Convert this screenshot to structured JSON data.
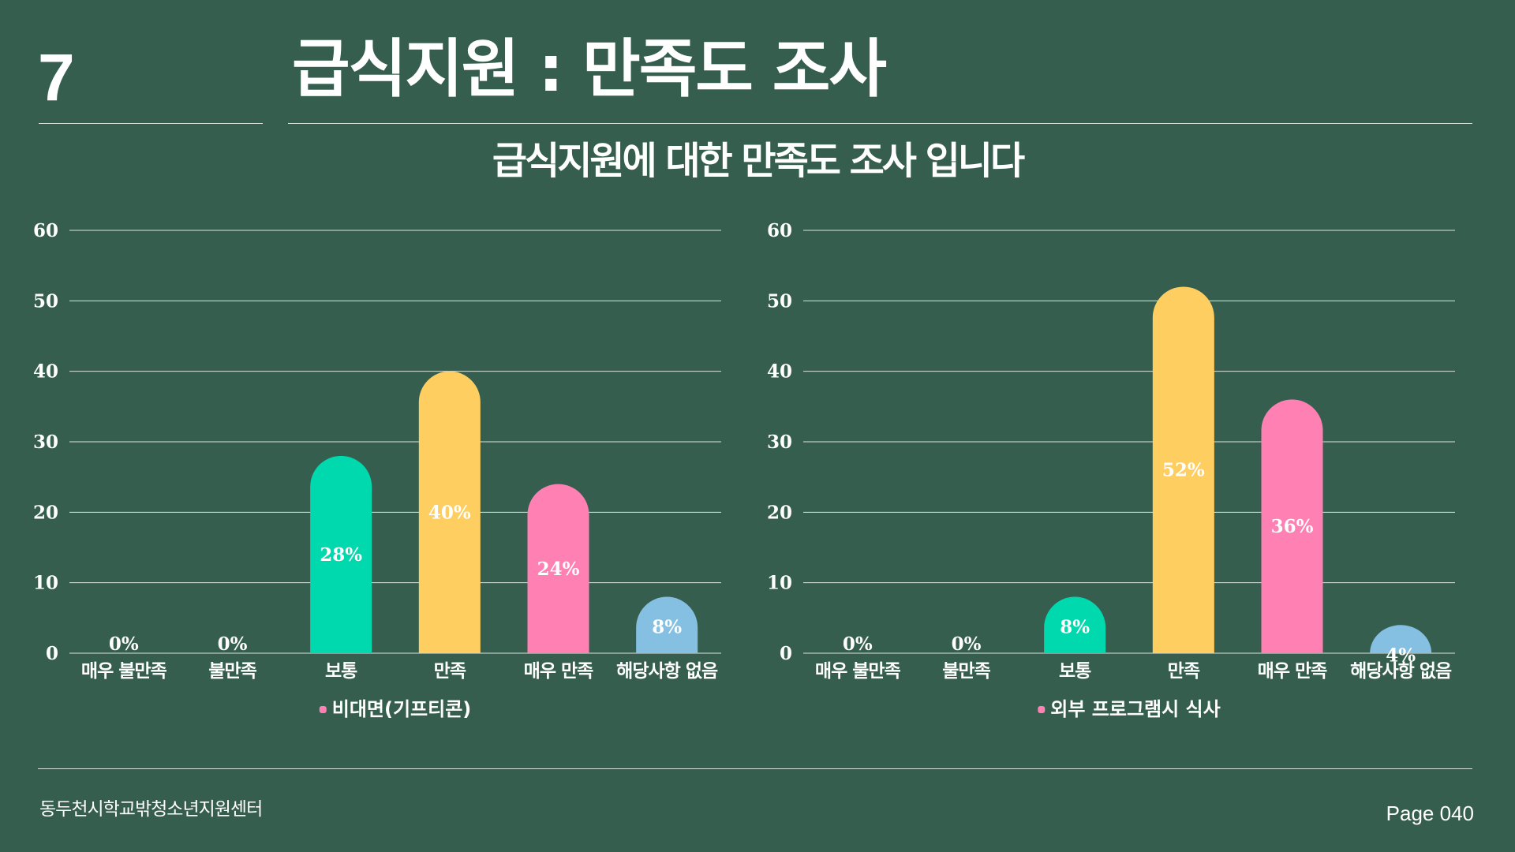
{
  "slide": {
    "number": "7",
    "title": "급식지원 : 만족도 조사",
    "subtitle": "급식지원에 대한 만족도 조사 입니다"
  },
  "footer": {
    "organization": "동두천시학교밖청소년지원센터",
    "page": "Page 040"
  },
  "chart_data": [
    {
      "type": "bar",
      "categories": [
        "매우 불만족",
        "불만족",
        "보통",
        "만족",
        "매우 만족",
        "해당사항 없음"
      ],
      "series": [
        {
          "name": "비대면(기프티콘)",
          "values": [
            0,
            0,
            28,
            40,
            24,
            8
          ]
        }
      ],
      "data_labels": [
        "0%",
        "0%",
        "28%",
        "40%",
        "24%",
        "8%"
      ],
      "y_ticks": [
        "0",
        "10",
        "20",
        "30",
        "40",
        "50",
        "60"
      ],
      "ylim": [
        0,
        60
      ],
      "grid": true,
      "legend_position": "bottom",
      "bar_colors": [
        "#00d8ae",
        "#00d8ae",
        "#00d8ae",
        "#ffce61",
        "#ff80b2",
        "#85c0e2"
      ],
      "legend_color": "#ff80b2"
    },
    {
      "type": "bar",
      "categories": [
        "매우 불만족",
        "불만족",
        "보통",
        "만족",
        "매우 만족",
        "해당사항 없음"
      ],
      "series": [
        {
          "name": "외부 프로그램시 식사",
          "values": [
            0,
            0,
            8,
            52,
            36,
            4
          ]
        }
      ],
      "data_labels": [
        "0%",
        "0%",
        "8%",
        "52%",
        "36%",
        "4%"
      ],
      "y_ticks": [
        "0",
        "10",
        "20",
        "30",
        "40",
        "50",
        "60"
      ],
      "ylim": [
        0,
        60
      ],
      "grid": true,
      "legend_position": "bottom",
      "bar_colors": [
        "#00d8ae",
        "#00d8ae",
        "#00d8ae",
        "#ffce61",
        "#ff80b2",
        "#85c0e2"
      ],
      "legend_color": "#ff80b2"
    }
  ]
}
